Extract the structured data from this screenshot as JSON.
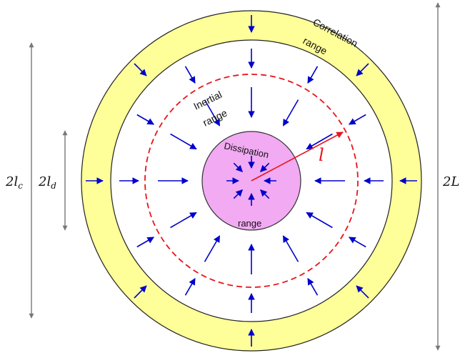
{
  "labels": {
    "correlation_word1": "Correlation",
    "correlation_word2": "range",
    "inertial_word1": "Inertial",
    "inertial_word2": "range",
    "dissipation_word1": "Dissipation",
    "dissipation_word2": "range",
    "radius_symbol": "l",
    "dim_lc": "2l",
    "dim_lc_sub": "c",
    "dim_ld": "2l",
    "dim_ld_sub": "d",
    "dim_L": "2L"
  },
  "colors": {
    "correlation_band": "#ffff99",
    "dissipation_disk": "#f2aaf2",
    "arrows": "#0000cc",
    "radius_and_inertial_circle": "#e8141b",
    "dimension_lines": "#777777"
  }
}
